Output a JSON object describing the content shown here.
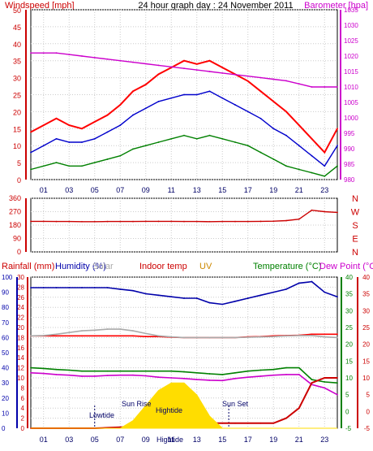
{
  "chart_data": [
    {
      "type": "line",
      "title": "24 hour graph day : 24 November 2011",
      "left_label": "Windspeed [mph]",
      "right_label": "Barometer [hpa]",
      "x_ticks": [
        "01",
        "03",
        "05",
        "07",
        "09",
        "11",
        "13",
        "15",
        "17",
        "19",
        "21",
        "23"
      ],
      "ylim_left": [
        0,
        50
      ],
      "y_ticks_left": [
        "0",
        "5",
        "10",
        "15",
        "20",
        "25",
        "30",
        "35",
        "40",
        "45",
        "50"
      ],
      "ylim_right": [
        980,
        1035
      ],
      "y_ticks_right": [
        "980",
        "985",
        "990",
        "995",
        "1000",
        "1005",
        "1010",
        "1015",
        "1020",
        "1025",
        "1030",
        "1035"
      ],
      "x": [
        0,
        1,
        2,
        3,
        4,
        5,
        6,
        7,
        8,
        9,
        10,
        11,
        12,
        13,
        14,
        15,
        16,
        17,
        18,
        19,
        20,
        21,
        22,
        23,
        24
      ],
      "series": [
        {
          "color": "#ff0000",
          "values": [
            14,
            16,
            18,
            16,
            15,
            17,
            19,
            22,
            26,
            28,
            31,
            33,
            35,
            34,
            35,
            33,
            31,
            29,
            26,
            23,
            20,
            16,
            12,
            8,
            15
          ]
        },
        {
          "color": "#0000cc",
          "values": [
            8,
            10,
            12,
            11,
            11,
            12,
            14,
            16,
            19,
            21,
            23,
            24,
            25,
            25,
            26,
            24,
            22,
            20,
            18,
            15,
            13,
            10,
            7,
            4,
            10
          ]
        },
        {
          "color": "#008000",
          "values": [
            3,
            4,
            5,
            4,
            4,
            5,
            6,
            7,
            9,
            10,
            11,
            12,
            13,
            12,
            13,
            12,
            11,
            10,
            8,
            6,
            4,
            3,
            2,
            1,
            4
          ]
        },
        {
          "color": "#cc00cc",
          "axis": "right",
          "values": [
            1021,
            1021,
            1021,
            1020.5,
            1020,
            1019.5,
            1019,
            1018.5,
            1018,
            1017.5,
            1017,
            1016.5,
            1016,
            1015.5,
            1015,
            1014.5,
            1014,
            1013.5,
            1013,
            1012.5,
            1012,
            1011,
            1010,
            1010,
            1010
          ]
        }
      ]
    },
    {
      "type": "line",
      "x_ticks": [
        "01",
        "03",
        "05",
        "07",
        "09",
        "11",
        "13",
        "15",
        "17",
        "19",
        "21",
        "23"
      ],
      "ylim": [
        0,
        360
      ],
      "y_ticks": [
        "0",
        "90",
        "180",
        "270",
        "360"
      ],
      "right_labels": [
        "N",
        "W",
        "S",
        "E",
        "N"
      ],
      "x": [
        0,
        1,
        2,
        3,
        4,
        5,
        6,
        7,
        8,
        9,
        10,
        11,
        12,
        13,
        14,
        15,
        16,
        17,
        18,
        19,
        20,
        21,
        22,
        23,
        24
      ],
      "series": [
        {
          "color": "#cc0000",
          "values": [
            205,
            205,
            204,
            204,
            203,
            203,
            204,
            204,
            204,
            205,
            205,
            205,
            204,
            204,
            203,
            204,
            204,
            204,
            205,
            206,
            210,
            220,
            280,
            270,
            265
          ]
        }
      ]
    },
    {
      "type": "line",
      "header_labels": [
        "Rainfall (mm)",
        "Humidity (%)",
        "Solar",
        "Indoor temp",
        "UV",
        "Temperature (°C)",
        "Dew Point (°C)"
      ],
      "annotations": [
        "Lowtide",
        "Sun Rise",
        "Hightide",
        "Sun Set",
        "Hightide"
      ],
      "x_ticks": [
        "01",
        "03",
        "05",
        "07",
        "09",
        "11",
        "13",
        "15",
        "17",
        "19",
        "21",
        "23"
      ],
      "ylim_left_rain": [
        0,
        30
      ],
      "y_ticks_left_rain": [
        "0",
        "2",
        "4",
        "6",
        "8",
        "10",
        "12",
        "14",
        "16",
        "18",
        "20",
        "22",
        "24",
        "26",
        "28",
        "30"
      ],
      "ylim_left_humidity": [
        0,
        100
      ],
      "y_ticks_left_humidity": [
        "0",
        "10",
        "20",
        "30",
        "40",
        "50",
        "60",
        "70",
        "80",
        "90",
        "100"
      ],
      "ylim_right_temp": [
        -5,
        40
      ],
      "y_ticks_right_temp": [
        "-5",
        "0",
        "5",
        "10",
        "15",
        "20",
        "25",
        "30",
        "35",
        "40"
      ],
      "x": [
        0,
        1,
        2,
        3,
        4,
        5,
        6,
        7,
        8,
        9,
        10,
        11,
        12,
        13,
        14,
        15,
        16,
        17,
        18,
        19,
        20,
        21,
        22,
        23,
        24
      ],
      "series": [
        {
          "color": "#0000aa",
          "axis": "humidity",
          "values": [
            93,
            93,
            93,
            93,
            93,
            93,
            93,
            92,
            91,
            89,
            88,
            87,
            86,
            86,
            83,
            82,
            84,
            86,
            88,
            90,
            92,
            96,
            97,
            90,
            87
          ]
        },
        {
          "color": "#ff0000",
          "axis": "temp",
          "values": [
            22.5,
            22.5,
            22.5,
            22.5,
            22.5,
            22.5,
            22.5,
            22.5,
            22.5,
            22.3,
            22.3,
            22.1,
            22,
            22,
            22,
            22,
            22,
            22.2,
            22.3,
            22.5,
            22.6,
            22.7,
            23,
            23,
            23
          ]
        },
        {
          "color": "#aaaaaa",
          "axis": "temp",
          "values": [
            22.5,
            22.6,
            23,
            23.5,
            24,
            24.2,
            24.5,
            24.5,
            24,
            23.2,
            22.5,
            22.2,
            22,
            22,
            22,
            22,
            22,
            22.1,
            22.2,
            22.3,
            22.5,
            22.6,
            22.6,
            22.2,
            22
          ]
        },
        {
          "color": "#008000",
          "axis": "temp",
          "values": [
            13,
            12.8,
            12.5,
            12.3,
            12,
            12,
            12,
            12,
            12,
            12,
            12,
            12,
            11.8,
            11.5,
            11.2,
            11,
            11.5,
            12,
            12.3,
            12.5,
            13,
            13,
            9.5,
            8.8,
            8.5
          ]
        },
        {
          "color": "#cc00cc",
          "axis": "temp",
          "values": [
            11.5,
            11.3,
            11,
            10.8,
            10.5,
            10.5,
            10.7,
            10.8,
            10.8,
            10.6,
            10.2,
            10,
            9.8,
            9.5,
            9.3,
            9.2,
            9.8,
            10.2,
            10.5,
            10.8,
            11,
            11,
            8,
            7,
            5
          ]
        },
        {
          "color": "#cc0000",
          "axis": "rain",
          "values": [
            0,
            0,
            0,
            0,
            0,
            0,
            0.1,
            0.2,
            0.3,
            0.5,
            0.6,
            0.8,
            1,
            1,
            1,
            1,
            1,
            1,
            1,
            1,
            2,
            4,
            9,
            10,
            10
          ]
        },
        {
          "color": "#ffdd00",
          "axis": "uv",
          "values": [
            0,
            0,
            0,
            0,
            0,
            0,
            0,
            0,
            0.5,
            1.5,
            2.5,
            3,
            3,
            2.2,
            0.8,
            0,
            0,
            0,
            0,
            0,
            0,
            0,
            0,
            0,
            0
          ]
        }
      ]
    }
  ]
}
